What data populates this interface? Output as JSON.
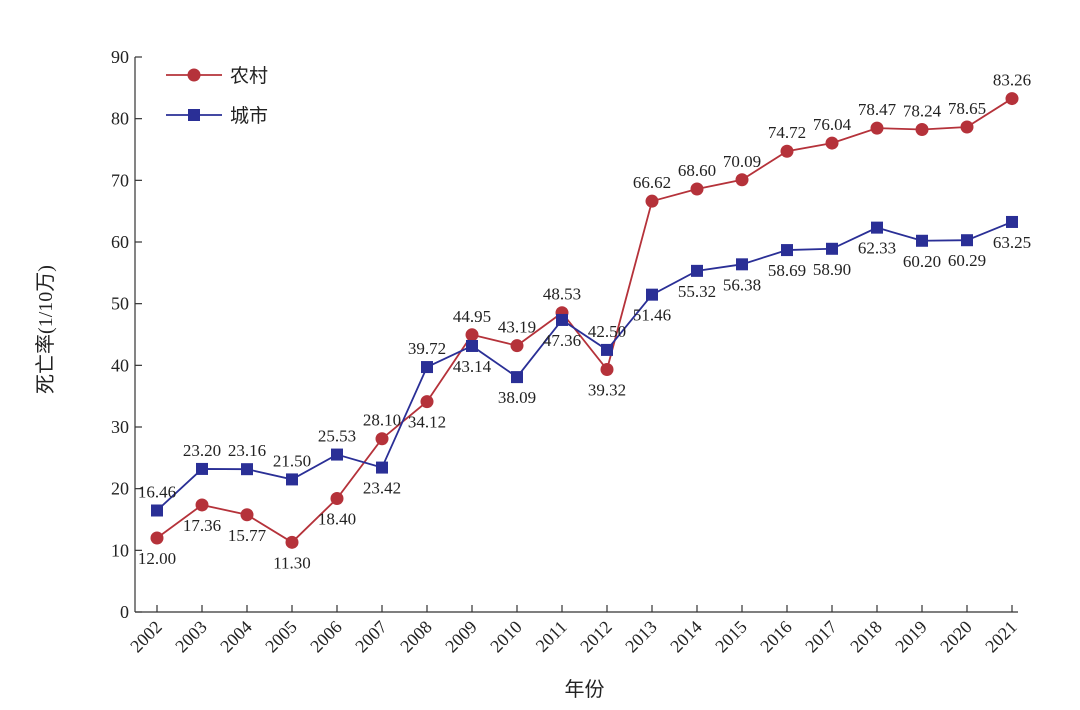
{
  "chart_data": {
    "type": "line",
    "title": "",
    "xlabel": "年份",
    "ylabel": "死亡率(1/10万)",
    "ylim": [
      0,
      90
    ],
    "yticks": [
      0,
      10,
      20,
      30,
      40,
      50,
      60,
      70,
      80,
      90
    ],
    "grid": false,
    "legend_position": "top-left",
    "x": [
      "2002",
      "2003",
      "2004",
      "2005",
      "2006",
      "2007",
      "2008",
      "2009",
      "2010",
      "2011",
      "2012",
      "2013",
      "2014",
      "2015",
      "2016",
      "2017",
      "2018",
      "2019",
      "2020",
      "2021"
    ],
    "series": [
      {
        "name": "农村",
        "color": "#b5323a",
        "marker": "circle",
        "values": [
          12.0,
          17.36,
          15.77,
          11.3,
          18.4,
          28.1,
          34.12,
          44.95,
          43.19,
          48.53,
          39.32,
          66.62,
          68.6,
          70.09,
          74.72,
          76.04,
          78.47,
          78.24,
          78.65,
          83.26
        ],
        "labels": [
          "12.00",
          "17.36",
          "15.77",
          "11.30",
          "18.40",
          "28.10",
          "34.12",
          "44.95",
          "43.19",
          "48.53",
          "39.32",
          "66.62",
          "68.60",
          "70.09",
          "74.72",
          "76.04",
          "78.47",
          "78.24",
          "78.65",
          "83.26"
        ],
        "label_side": [
          "below",
          "below",
          "below",
          "below",
          "below",
          "above",
          "below",
          "above",
          "above",
          "above",
          "below",
          "above",
          "above",
          "above",
          "above",
          "above",
          "above",
          "above",
          "above",
          "above"
        ]
      },
      {
        "name": "城市",
        "color": "#2a2f96",
        "marker": "square",
        "values": [
          16.46,
          23.2,
          23.16,
          21.5,
          25.53,
          23.42,
          39.72,
          43.14,
          38.09,
          47.36,
          42.5,
          51.46,
          55.32,
          56.38,
          58.69,
          58.9,
          62.33,
          60.2,
          60.29,
          63.25
        ],
        "labels": [
          "16.46",
          "23.20",
          "23.16",
          "21.50",
          "25.53",
          "23.42",
          "39.72",
          "43.14",
          "38.09",
          "47.36",
          "42.50",
          "51.46",
          "55.32",
          "56.38",
          "58.69",
          "58.90",
          "62.33",
          "60.20",
          "60.29",
          "63.25"
        ],
        "label_side": [
          "above",
          "above",
          "above",
          "above",
          "above",
          "below",
          "above",
          "below",
          "below",
          "below",
          "above",
          "below",
          "below",
          "below",
          "below",
          "below",
          "below",
          "below",
          "below",
          "below"
        ]
      }
    ]
  }
}
